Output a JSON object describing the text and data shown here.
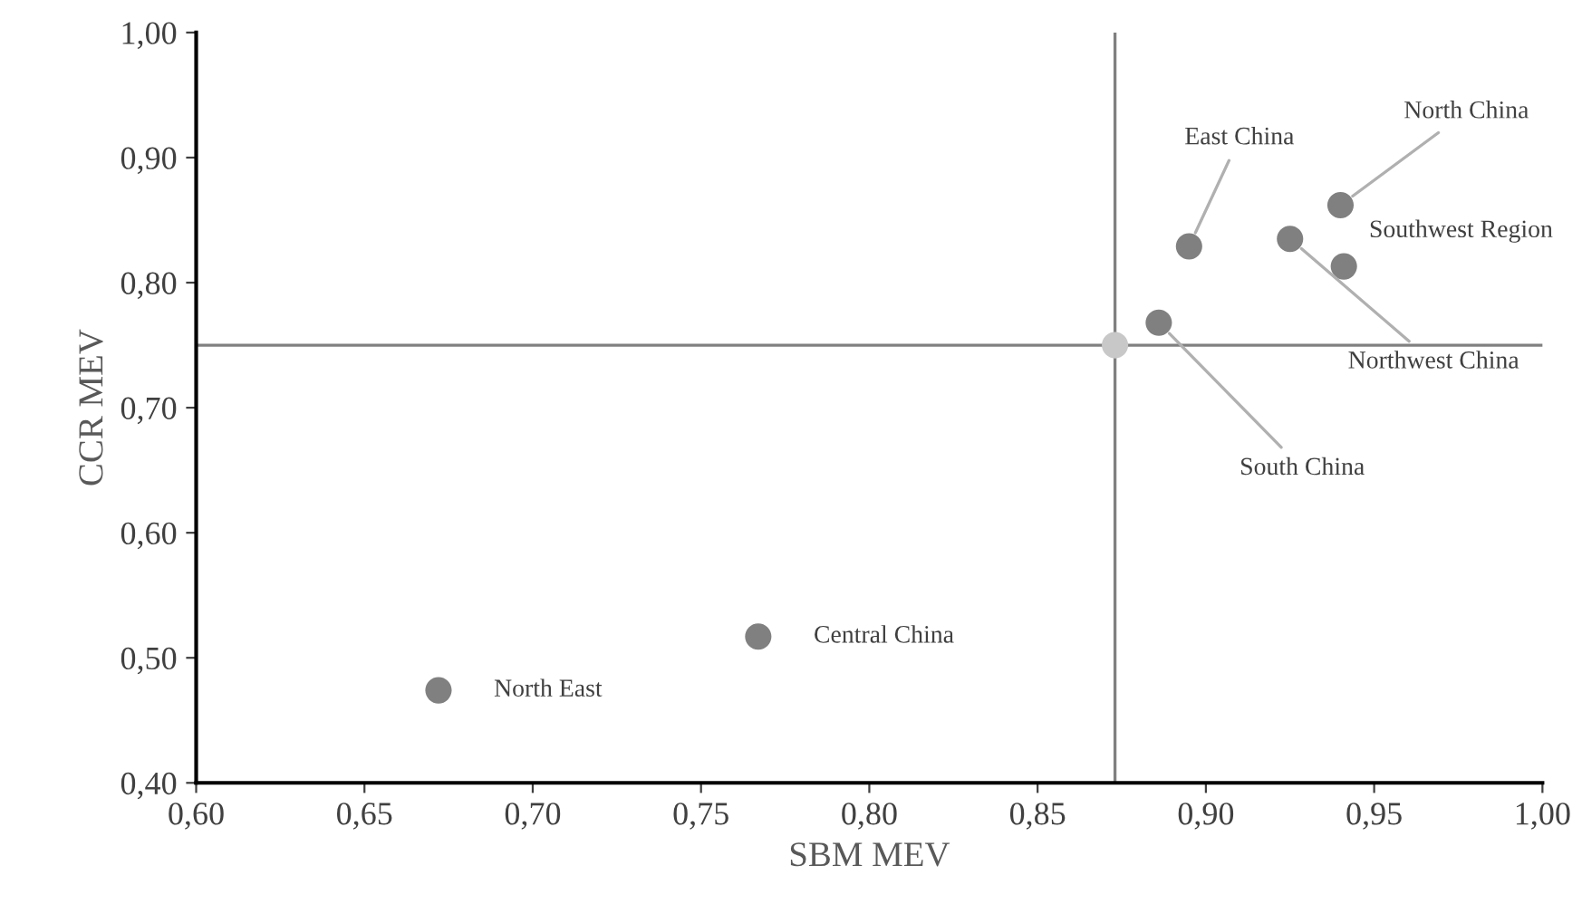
{
  "chart_data": {
    "type": "scatter",
    "xlabel": "SBM MEV",
    "ylabel": "CCR MEV",
    "series": [
      {
        "color": "#808080",
        "x": [
          0.672,
          0.767,
          0.886,
          0.895,
          0.925,
          0.94,
          0.941
        ],
        "values": [
          0.474,
          0.517,
          0.768,
          0.829,
          0.835,
          0.862,
          0.813
        ]
      },
      {
        "color": "#c8c8c8",
        "x": [
          0.873
        ],
        "values": [
          0.75
        ]
      }
    ],
    "annotations": [
      {
        "text": "North East",
        "x": 0.672,
        "y": 0.474
      },
      {
        "text": "Central China",
        "x": 0.767,
        "y": 0.517
      },
      {
        "text": "South China",
        "x": 0.886,
        "y": 0.768
      },
      {
        "text": "East China",
        "x": 0.895,
        "y": 0.829
      },
      {
        "text": "Northwest China",
        "x": 0.925,
        "y": 0.835
      },
      {
        "text": "North China",
        "x": 0.94,
        "y": 0.862
      },
      {
        "text": "Southwest Region",
        "x": 0.941,
        "y": 0.813
      }
    ],
    "ref_lines": [
      {
        "axis": "x",
        "value": 0.873,
        "color": "#808080"
      },
      {
        "axis": "y",
        "value": 0.75,
        "color": "#808080"
      }
    ],
    "xlim": [
      0.6,
      1.0
    ],
    "ylim": [
      0.4,
      1.0
    ],
    "xticks": [
      {
        "value": 0.6,
        "label": "0,60"
      },
      {
        "value": 0.65,
        "label": "0,65"
      },
      {
        "value": 0.7,
        "label": "0,70"
      },
      {
        "value": 0.75,
        "label": "0,75"
      },
      {
        "value": 0.8,
        "label": "0,80"
      },
      {
        "value": 0.85,
        "label": "0,85"
      },
      {
        "value": 0.9,
        "label": "0,90"
      },
      {
        "value": 0.95,
        "label": "0,95"
      },
      {
        "value": 1.0,
        "label": "1,00"
      }
    ],
    "yticks": [
      {
        "value": 0.4,
        "label": "0,40"
      },
      {
        "value": 0.5,
        "label": "0,50"
      },
      {
        "value": 0.6,
        "label": "0,60"
      },
      {
        "value": 0.7,
        "label": "0,70"
      },
      {
        "value": 0.8,
        "label": "0,80"
      },
      {
        "value": 0.9,
        "label": "0,90"
      },
      {
        "value": 1.0,
        "label": "1,00"
      }
    ],
    "grid": false,
    "legend": false,
    "marker": "circle"
  }
}
